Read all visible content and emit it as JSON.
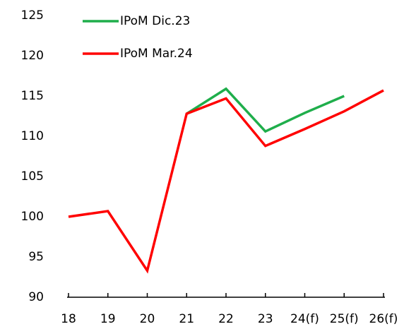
{
  "chart_data": {
    "type": "line",
    "categories": [
      "18",
      "19",
      "20",
      "21",
      "22",
      "23",
      "24(f)",
      "25(f)",
      "26(f)"
    ],
    "series": [
      {
        "name": "IPoM Dic.23",
        "color": "#1fae4b",
        "values": [
          null,
          null,
          null,
          112.8,
          115.9,
          110.6,
          112.9,
          115.0,
          null
        ]
      },
      {
        "name": "IPoM Mar.24",
        "color": "#ff0000",
        "values": [
          100,
          100.7,
          93.3,
          112.8,
          114.7,
          108.8,
          110.9,
          113.1,
          115.7
        ]
      }
    ],
    "ylim": [
      90,
      125
    ],
    "yticks": [
      90,
      95,
      100,
      105,
      110,
      115,
      120,
      125
    ],
    "grid": false,
    "legend": "top-left"
  }
}
